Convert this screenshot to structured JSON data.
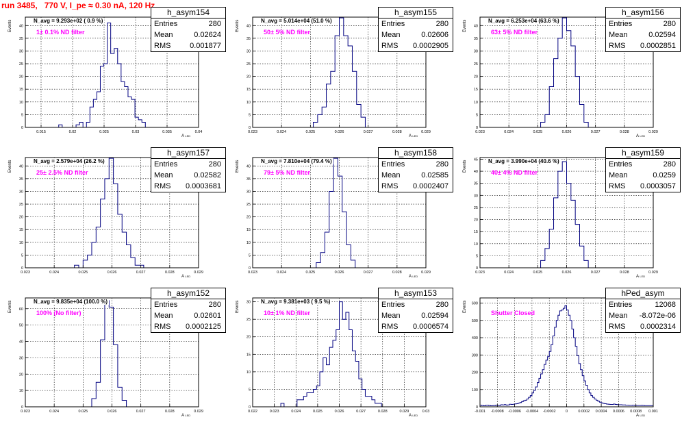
{
  "title": "run 3485,   770 V, I_pe ≈ 0.30 nA, 120 Hz",
  "stat_labels": {
    "entries": "Entries",
    "mean": "Mean",
    "rms": "RMS"
  },
  "colors": {
    "histogram": "#000080",
    "title": "#ff0000",
    "filter_label": "#ff00ff"
  },
  "chart_data": [
    {
      "type": "bar",
      "name": "h_asym154",
      "ylabel": "Events",
      "xlabel": "A",
      "xlabel_sub": "LED",
      "navg": "N_avg = 9.293e+02 ( 0.9 %)",
      "filter": "1± 0.1% ND filter",
      "stats": {
        "entries": "280",
        "mean": "0.02624",
        "rms": "0.001877"
      },
      "xlim": [
        0.0125,
        0.04
      ],
      "ylim": [
        0,
        43.3
      ],
      "grid": true,
      "xticks": [
        0.015,
        0.02,
        0.025,
        0.03,
        0.035,
        0.04
      ],
      "xtick_labels": [
        "0.015",
        "0.02",
        "0.025",
        "0.03",
        "0.035",
        "0.04"
      ],
      "yticks": [
        0,
        5,
        10,
        15,
        20,
        25,
        30,
        35,
        40
      ],
      "bin_edges": [
        0.0178,
        0.01835,
        0.0189,
        0.01945,
        0.02,
        0.02055,
        0.0211,
        0.02165,
        0.0222,
        0.02275,
        0.0233,
        0.02385,
        0.0244,
        0.02495,
        0.0255,
        0.02605,
        0.0266,
        0.02715,
        0.0277,
        0.02825,
        0.0288,
        0.02935,
        0.0299,
        0.03045,
        0.031,
        0.03155
      ],
      "values": [
        1,
        0,
        0,
        0,
        0,
        1,
        2,
        0,
        2,
        8,
        11,
        14,
        24,
        25,
        41,
        29,
        31,
        25,
        18,
        16,
        12,
        11,
        4,
        3,
        2
      ]
    },
    {
      "type": "bar",
      "name": "h_asym155",
      "ylabel": "Events",
      "xlabel": "A",
      "xlabel_sub": "LED",
      "navg": "N_avg = 5.014e+04 (51.0 %)",
      "filter": "50± 5% ND filter",
      "stats": {
        "entries": "280",
        "mean": "0.02606",
        "rms": "0.0002905"
      },
      "xlim": [
        0.023,
        0.029
      ],
      "ylim": [
        0,
        43.3
      ],
      "grid": true,
      "xticks": [
        0.023,
        0.024,
        0.025,
        0.026,
        0.027,
        0.028,
        0.029
      ],
      "xtick_labels": [
        "0.023",
        "0.024",
        "0.025",
        "0.026",
        "0.027",
        "0.028",
        "0.029"
      ],
      "yticks": [
        0,
        5,
        10,
        15,
        20,
        25,
        30,
        35,
        40
      ],
      "bin_edges": [
        0.0251,
        0.02525,
        0.0254,
        0.02555,
        0.0257,
        0.02585,
        0.026,
        0.02615,
        0.0263,
        0.02645,
        0.0266,
        0.02675,
        0.0269
      ],
      "values": [
        2,
        5,
        8,
        17,
        22,
        36,
        43,
        36,
        32,
        22,
        9,
        4
      ]
    },
    {
      "type": "bar",
      "name": "h_asym156",
      "ylabel": "Events",
      "xlabel": "A",
      "xlabel_sub": "LED",
      "navg": "N_avg = 6.253e+04 (63.6 %)",
      "filter": "63± 5% ND filter",
      "stats": {
        "entries": "280",
        "mean": "0.02594",
        "rms": "0.0002851"
      },
      "xlim": [
        0.023,
        0.029
      ],
      "ylim": [
        0,
        43.3
      ],
      "grid": true,
      "xticks": [
        0.023,
        0.024,
        0.025,
        0.026,
        0.027,
        0.028,
        0.029
      ],
      "xtick_labels": [
        "0.023",
        "0.024",
        "0.025",
        "0.026",
        "0.027",
        "0.028",
        "0.029"
      ],
      "yticks": [
        0,
        5,
        10,
        15,
        20,
        25,
        30,
        35,
        40
      ],
      "bin_edges": [
        0.0251,
        0.02525,
        0.0254,
        0.02555,
        0.0257,
        0.02585,
        0.026,
        0.02615,
        0.0263,
        0.02645,
        0.0266,
        0.02675
      ],
      "values": [
        2,
        5,
        16,
        27,
        35,
        43,
        38,
        32,
        20,
        9,
        2
      ]
    },
    {
      "type": "bar",
      "name": "h_asym157",
      "ylabel": "Events",
      "xlabel": "A",
      "xlabel_sub": "LED",
      "navg": "N_avg = 2.579e+04 (26.2 %)",
      "filter": "25± 2.5% ND filter",
      "stats": {
        "entries": "280",
        "mean": "0.02582",
        "rms": "0.0003681"
      },
      "xlim": [
        0.023,
        0.029
      ],
      "ylim": [
        0,
        43.3
      ],
      "grid": true,
      "xticks": [
        0.023,
        0.024,
        0.025,
        0.026,
        0.027,
        0.028,
        0.029
      ],
      "xtick_labels": [
        "0.023",
        "0.024",
        "0.025",
        "0.026",
        "0.027",
        "0.028",
        "0.029"
      ],
      "yticks": [
        0,
        5,
        10,
        15,
        20,
        25,
        30,
        35,
        40
      ],
      "bin_edges": [
        0.0247,
        0.02485,
        0.025,
        0.02515,
        0.0253,
        0.02545,
        0.0256,
        0.02575,
        0.0259,
        0.02605,
        0.0262,
        0.02635,
        0.0265,
        0.02665,
        0.0268,
        0.02695,
        0.0271
      ],
      "values": [
        1,
        0,
        3,
        5,
        10,
        16,
        27,
        35,
        43,
        33,
        21,
        14,
        9,
        4,
        1,
        1
      ]
    },
    {
      "type": "bar",
      "name": "h_asym158",
      "ylabel": "Events",
      "xlabel": "A",
      "xlabel_sub": "LED",
      "navg": "N_avg = 7.810e+04 (79.4 %)",
      "filter": "79± 5% ND filter",
      "stats": {
        "entries": "280",
        "mean": "0.02585",
        "rms": "0.0002407"
      },
      "xlim": [
        0.023,
        0.029
      ],
      "ylim": [
        0,
        43.3
      ],
      "grid": true,
      "xticks": [
        0.023,
        0.024,
        0.025,
        0.026,
        0.027,
        0.028,
        0.029
      ],
      "xtick_labels": [
        "0.023",
        "0.024",
        "0.025",
        "0.026",
        "0.027",
        "0.028",
        "0.029"
      ],
      "yticks": [
        0,
        5,
        10,
        15,
        20,
        25,
        30,
        35,
        40
      ],
      "bin_edges": [
        0.0252,
        0.02535,
        0.0255,
        0.02565,
        0.0258,
        0.02595,
        0.0261,
        0.02625,
        0.0264,
        0.02655
      ],
      "values": [
        2,
        6,
        14,
        30,
        43,
        36,
        22,
        9,
        3
      ]
    },
    {
      "type": "bar",
      "name": "h_asym159",
      "ylabel": "Events",
      "xlabel": "A",
      "xlabel_sub": "LED",
      "navg": "N_avg = 3.990e+04 (40.6 %)",
      "filter": "40± 4% ND filter",
      "stats": {
        "entries": "280",
        "mean": "0.0259",
        "rms": "0.0003057"
      },
      "xlim": [
        0.023,
        0.029
      ],
      "ylim": [
        0,
        45.7
      ],
      "grid": true,
      "xticks": [
        0.023,
        0.024,
        0.025,
        0.026,
        0.027,
        0.028,
        0.029
      ],
      "xtick_labels": [
        "0.023",
        "0.024",
        "0.025",
        "0.026",
        "0.027",
        "0.028",
        "0.029"
      ],
      "yticks": [
        0,
        5,
        10,
        15,
        20,
        25,
        30,
        35,
        40,
        45
      ],
      "bin_edges": [
        0.0251,
        0.02525,
        0.0254,
        0.02555,
        0.0257,
        0.02585,
        0.026,
        0.02615,
        0.0263,
        0.02645,
        0.0266,
        0.02675
      ],
      "values": [
        3,
        8,
        16,
        29,
        40,
        44,
        35,
        28,
        18,
        9,
        3
      ]
    },
    {
      "type": "bar",
      "name": "h_asym152",
      "ylabel": "Events",
      "xlabel": "A",
      "xlabel_sub": "LED",
      "navg": "N_avg = 9.835e+04 (100.0 %)",
      "filter": "100% (No filter)",
      "stats": {
        "entries": "280",
        "mean": "0.02601",
        "rms": "0.0002125"
      },
      "xlim": [
        0.023,
        0.029
      ],
      "ylim": [
        0,
        66.6
      ],
      "grid": true,
      "xticks": [
        0.023,
        0.024,
        0.025,
        0.026,
        0.027,
        0.028,
        0.029
      ],
      "xtick_labels": [
        "0.023",
        "0.024",
        "0.025",
        "0.026",
        "0.027",
        "0.028",
        "0.029"
      ],
      "yticks": [
        0,
        10,
        20,
        30,
        40,
        50,
        60
      ],
      "bin_edges": [
        0.0253,
        0.02545,
        0.0256,
        0.02575,
        0.0259,
        0.02605,
        0.0262,
        0.02635,
        0.0265
      ],
      "values": [
        5,
        15,
        41,
        65,
        61,
        38,
        12,
        4
      ]
    },
    {
      "type": "bar",
      "name": "h_asym153",
      "ylabel": "Events",
      "xlabel": "A",
      "xlabel_sub": "LED",
      "navg": "N_avg = 9.381e+03 ( 9.5 %)",
      "filter": "10± 1% ND filter",
      "stats": {
        "entries": "280",
        "mean": "0.02594",
        "rms": "0.0006574"
      },
      "xlim": [
        0.022,
        0.03
      ],
      "ylim": [
        0,
        31.1
      ],
      "grid": true,
      "xticks": [
        0.022,
        0.023,
        0.024,
        0.025,
        0.026,
        0.027,
        0.028,
        0.029,
        0.03
      ],
      "xtick_labels": [
        "0.022",
        "0.023",
        "0.024",
        "0.025",
        "0.026",
        "0.027",
        "0.028",
        "0.029",
        "0.03"
      ],
      "yticks": [
        0,
        5,
        10,
        15,
        20,
        25,
        30
      ],
      "bin_edges": [
        0.0233,
        0.02345,
        0.0236,
        0.02375,
        0.0239,
        0.02405,
        0.0242,
        0.02435,
        0.0245,
        0.02465,
        0.0248,
        0.02495,
        0.0251,
        0.02525,
        0.0254,
        0.02555,
        0.0257,
        0.02585,
        0.026,
        0.02615,
        0.0263,
        0.02645,
        0.0266,
        0.02675,
        0.0269,
        0.02705,
        0.0272,
        0.02735,
        0.0275,
        0.02765,
        0.0278,
        0.02795
      ],
      "values": [
        1,
        0,
        0,
        0,
        0,
        2,
        2,
        3,
        4,
        4,
        5,
        6,
        10,
        14,
        12,
        17,
        19,
        22,
        30,
        25,
        27,
        22,
        16,
        13,
        8,
        5,
        3,
        3,
        2,
        1,
        1
      ]
    },
    {
      "type": "bar",
      "name": "hPed_asym",
      "ylabel": "Events",
      "xlabel": "A",
      "xlabel_sub": "LED",
      "navg": "",
      "filter": "Shutter Closed",
      "stats": {
        "entries": "12068",
        "mean": "-8.072e-06",
        "rms": "0.0002314"
      },
      "xlim": [
        -0.001,
        0.001
      ],
      "ylim": [
        0,
        630
      ],
      "grid": true,
      "xticks": [
        -0.001,
        -0.0008,
        -0.0006,
        -0.0004,
        -0.0002,
        0,
        0.0002,
        0.0004,
        0.0006,
        0.0008,
        0.001
      ],
      "xtick_labels": [
        "-0.001",
        "-0.0008",
        "-0.0006",
        "-0.0004",
        "-0.0002",
        "0",
        "0.0002",
        "0.0004",
        "0.0006",
        "0.0008",
        "0.001"
      ],
      "yticks": [
        0,
        100,
        200,
        300,
        400,
        500,
        600
      ],
      "bin_edges": [
        -0.001,
        -0.00098,
        -0.00096,
        -0.00094,
        -0.00092,
        -0.0009,
        -0.00088,
        -0.00086,
        -0.00084,
        -0.00082,
        -0.0008,
        -0.00078,
        -0.00076,
        -0.00074,
        -0.00072,
        -0.0007,
        -0.00068,
        -0.00066,
        -0.00064,
        -0.00062,
        -0.0006,
        -0.00058,
        -0.00056,
        -0.00054,
        -0.00052,
        -0.0005,
        -0.00048,
        -0.00046,
        -0.00044,
        -0.00042,
        -0.0004,
        -0.00038,
        -0.00036,
        -0.00034,
        -0.00032,
        -0.0003,
        -0.00028,
        -0.00026,
        -0.00024,
        -0.00022,
        -0.0002,
        -0.00018,
        -0.00016,
        -0.00014,
        -0.00012,
        -0.0001,
        -8e-05,
        -6e-05,
        -4e-05,
        -2e-05,
        0,
        2e-05,
        4e-05,
        6e-05,
        8e-05,
        0.0001,
        0.00012,
        0.00014,
        0.00016,
        0.00018,
        0.0002,
        0.00022,
        0.00024,
        0.00026,
        0.00028,
        0.0003,
        0.00032,
        0.00034,
        0.00036,
        0.00038,
        0.0004,
        0.00042,
        0.00044,
        0.00046,
        0.00048,
        0.0005,
        0.00052,
        0.00054,
        0.00056,
        0.00058,
        0.0006,
        0.00062,
        0.00064,
        0.00066,
        0.00068,
        0.0007,
        0.00072,
        0.00074,
        0.00076,
        0.00078,
        0.0008,
        0.00082,
        0.00084,
        0.00086,
        0.00088,
        0.0009,
        0.00092,
        0.00094,
        0.00096,
        0.00098,
        0.001
      ],
      "values": [
        10,
        8,
        6,
        9,
        10,
        8,
        6,
        7,
        8,
        10,
        9,
        8,
        12,
        11,
        13,
        10,
        11,
        15,
        14,
        15,
        17,
        18,
        22,
        25,
        30,
        35,
        38,
        45,
        55,
        65,
        80,
        95,
        115,
        140,
        165,
        190,
        215,
        245,
        270,
        290,
        320,
        360,
        410,
        460,
        500,
        530,
        555,
        560,
        570,
        585,
        560,
        530,
        500,
        450,
        400,
        350,
        295,
        250,
        215,
        180,
        150,
        125,
        100,
        80,
        65,
        55,
        45,
        38,
        32,
        27,
        23,
        20,
        18,
        16,
        15,
        14,
        14,
        16,
        14,
        13,
        12,
        12,
        11,
        11,
        10,
        10,
        9,
        9,
        10,
        9,
        8,
        8,
        8,
        9,
        8,
        7,
        7,
        7,
        7,
        7
      ]
    }
  ]
}
